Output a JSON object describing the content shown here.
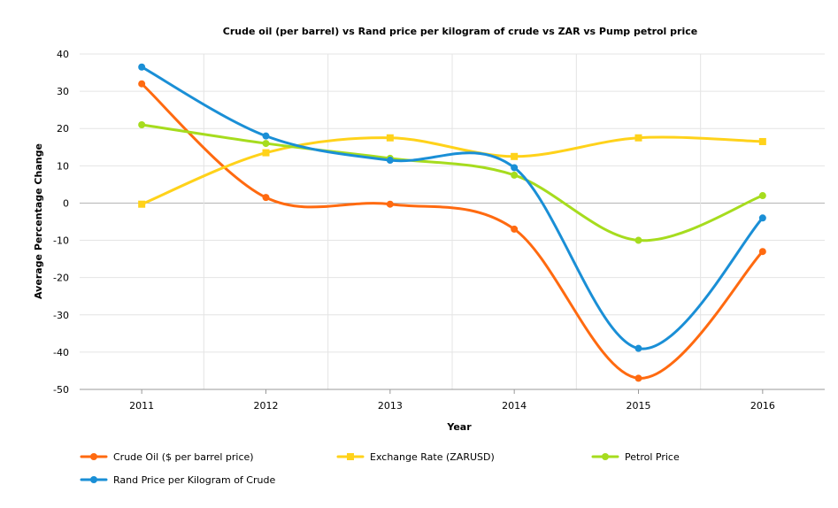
{
  "chart_data": {
    "type": "line",
    "title": "Crude oil (per barrel) vs Rand price per kilogram of crude vs ZAR vs Pump petrol price",
    "xlabel": "Year",
    "ylabel": "Average Percentage Change",
    "categories": [
      "2011",
      "2012",
      "2013",
      "2014",
      "2015",
      "2016"
    ],
    "ylim": [
      -50,
      40
    ],
    "yticks": [
      40,
      30,
      20,
      10,
      0,
      -10,
      -20,
      -30,
      -40,
      -50
    ],
    "grid": true,
    "legend_position": "bottom-left",
    "series": [
      {
        "name": "Crude Oil ($ per barrel price)",
        "color": "#ff6a10",
        "marker": "circle",
        "values": [
          32,
          1.5,
          -0.3,
          -7,
          -47,
          -13
        ]
      },
      {
        "name": "Exchange Rate (ZARUSD)",
        "color": "#ffd21a",
        "marker": "square",
        "values": [
          -0.3,
          13.5,
          17.5,
          12.5,
          17.5,
          16.5
        ]
      },
      {
        "name": "Petrol Price",
        "color": "#a6dc1e",
        "marker": "circle",
        "values": [
          21,
          16,
          12,
          7.5,
          -10,
          2
        ]
      },
      {
        "name": "Rand Price per Kilogram of Crude",
        "color": "#1a8fd6",
        "marker": "circle",
        "values": [
          36.5,
          18,
          11.5,
          9.5,
          -39,
          -4
        ]
      }
    ]
  }
}
